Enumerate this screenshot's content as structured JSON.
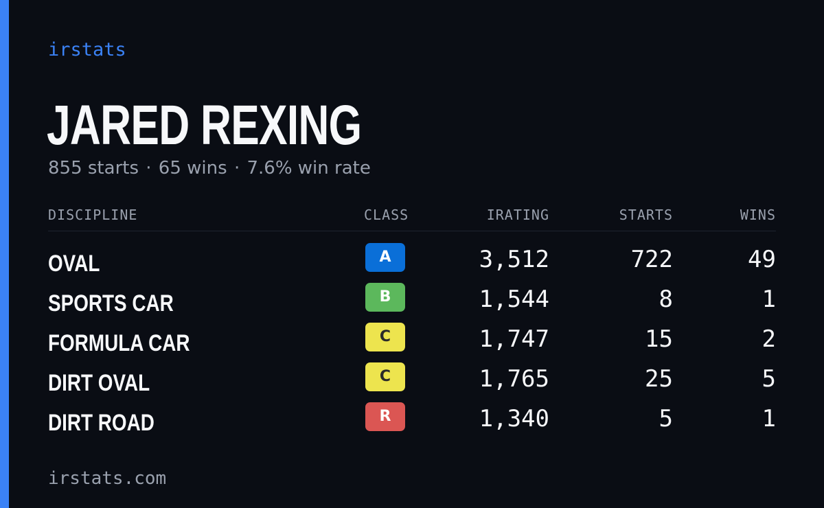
{
  "colors": {
    "accent": "#3b82f6",
    "background": "#0a0d14",
    "text_primary": "#f7f8fa",
    "text_muted": "#9aa1ae"
  },
  "brand": "irstats",
  "driver": {
    "name": "JARED REXING",
    "summary": {
      "starts": "855 starts",
      "wins": "65 wins",
      "win_rate": "7.6% win rate",
      "separator": "·"
    }
  },
  "table": {
    "headers": {
      "discipline": "DISCIPLINE",
      "class": "CLASS",
      "irating": "IRATING",
      "starts": "STARTS",
      "wins": "WINS"
    },
    "rows": [
      {
        "discipline": "OVAL",
        "class": "A",
        "class_bg": "#0a6fd8",
        "class_fg": "#ffffff",
        "irating": "3,512",
        "starts": "722",
        "wins": "49"
      },
      {
        "discipline": "SPORTS CAR",
        "class": "B",
        "class_bg": "#5cb85c",
        "class_fg": "#ffffff",
        "irating": "1,544",
        "starts": "8",
        "wins": "1"
      },
      {
        "discipline": "FORMULA CAR",
        "class": "C",
        "class_bg": "#ede44e",
        "class_fg": "#2a2a2a",
        "irating": "1,747",
        "starts": "15",
        "wins": "2"
      },
      {
        "discipline": "DIRT OVAL",
        "class": "C",
        "class_bg": "#ede44e",
        "class_fg": "#2a2a2a",
        "irating": "1,765",
        "starts": "25",
        "wins": "5"
      },
      {
        "discipline": "DIRT ROAD",
        "class": "R",
        "class_bg": "#db5653",
        "class_fg": "#ffffff",
        "irating": "1,340",
        "starts": "5",
        "wins": "1"
      }
    ]
  },
  "footer": "irstats.com"
}
